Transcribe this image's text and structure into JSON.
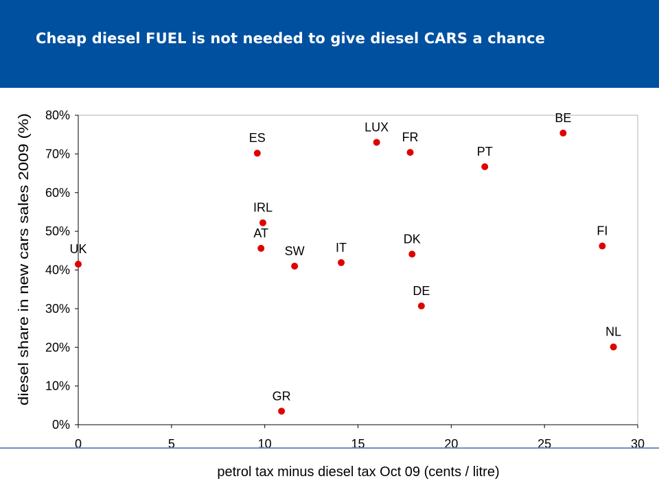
{
  "slide": {
    "title": "Cheap diesel FUEL is not needed to give diesel CARS a chance",
    "header_color": "#0050a0"
  },
  "chart_data": {
    "type": "scatter",
    "title": "",
    "xlabel": "petrol tax minus diesel tax Oct 09 (cents / litre)",
    "ylabel": "diesel share in new cars sales 2009 (%)",
    "xlim": [
      0,
      30
    ],
    "ylim": [
      0,
      80
    ],
    "x_ticks": [
      "0",
      "5",
      "10",
      "15",
      "20",
      "25",
      "30"
    ],
    "y_ticks": [
      "0%",
      "10%",
      "20%",
      "30%",
      "40%",
      "50%",
      "60%",
      "70%",
      "80%"
    ],
    "marker_color": "#e00000",
    "grid": false,
    "points": [
      {
        "label": "UK",
        "x": 0.0,
        "y": 41.5
      },
      {
        "label": "ES",
        "x": 9.6,
        "y": 70.2
      },
      {
        "label": "IRL",
        "x": 9.9,
        "y": 52.2
      },
      {
        "label": "AT",
        "x": 9.8,
        "y": 45.6
      },
      {
        "label": "GR",
        "x": 10.9,
        "y": 3.5
      },
      {
        "label": "SW",
        "x": 11.6,
        "y": 41.0
      },
      {
        "label": "IT",
        "x": 14.1,
        "y": 41.9
      },
      {
        "label": "LUX",
        "x": 16.0,
        "y": 73.0
      },
      {
        "label": "FR",
        "x": 17.8,
        "y": 70.4
      },
      {
        "label": "DK",
        "x": 17.9,
        "y": 44.1
      },
      {
        "label": "DE",
        "x": 18.4,
        "y": 30.7
      },
      {
        "label": "PT",
        "x": 21.8,
        "y": 66.7
      },
      {
        "label": "BE",
        "x": 26.0,
        "y": 75.4
      },
      {
        "label": "FI",
        "x": 28.1,
        "y": 46.2
      },
      {
        "label": "NL",
        "x": 28.7,
        "y": 20.1
      }
    ]
  }
}
